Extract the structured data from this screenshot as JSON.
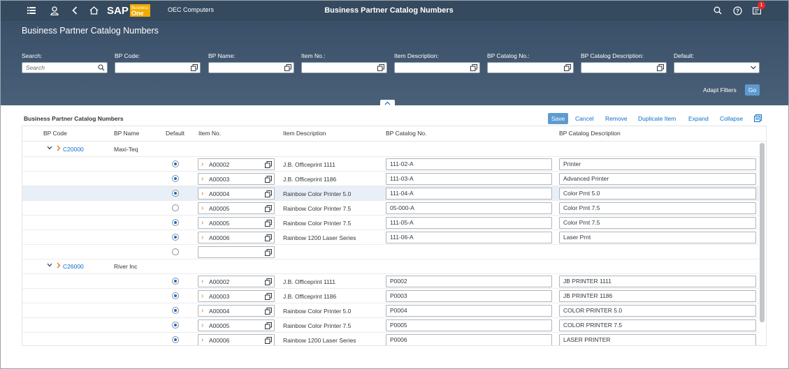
{
  "shell": {
    "company": "OEC Computers",
    "app_title": "Business Partner Catalog Numbers",
    "logo_text": "SAP Business One",
    "notifications": "1"
  },
  "header": {
    "page_title": "Business Partner Catalog Numbers",
    "filters": [
      {
        "label": "Search:",
        "placeholder": "Search"
      },
      {
        "label": "BP Code:",
        "placeholder": ""
      },
      {
        "label": "BP Name:",
        "placeholder": ""
      },
      {
        "label": "Item No.:",
        "placeholder": ""
      },
      {
        "label": "Item Description:",
        "placeholder": ""
      },
      {
        "label": "BP Catalog No.:",
        "placeholder": ""
      },
      {
        "label": "BP Catalog Description:",
        "placeholder": ""
      },
      {
        "label": "Default:",
        "placeholder": ""
      }
    ],
    "adapt_filters": "Adapt Filters",
    "go": "Go"
  },
  "section": {
    "title": "Business Partner Catalog Numbers",
    "actions": {
      "save": "Save",
      "cancel": "Cancel",
      "remove": "Remove",
      "duplicate": "Duplicate Item",
      "expand": "Expand",
      "collapse": "Collapse"
    }
  },
  "table": {
    "columns": [
      "BP Code",
      "BP Name",
      "Default",
      "Item No.",
      "Item Description",
      "BP Catalog No.",
      "BP Catalog Description"
    ],
    "groups": [
      {
        "bp_code": "C20000",
        "bp_name": "Maxi-Teq",
        "rows": [
          {
            "default": true,
            "item_no": "A00002",
            "item_desc": "J.B. Officeprint 1111",
            "cat_no": "111-02-A",
            "cat_desc": "Printer"
          },
          {
            "default": true,
            "item_no": "A00003",
            "item_desc": "J.B. Officeprint 1186",
            "cat_no": "111-03-A",
            "cat_desc": "Advanced Printer"
          },
          {
            "default": true,
            "item_no": "A00004",
            "item_desc": "Rainbow Color Printer 5.0",
            "cat_no": "111-04-A",
            "cat_desc": "Color Prnt 5.0"
          },
          {
            "default": false,
            "item_no": "A00005",
            "item_desc": "Rainbow Color Printer 7.5",
            "cat_no": "05-000-A",
            "cat_desc": "Color Prnt 7.5"
          },
          {
            "default": true,
            "item_no": "A00005",
            "item_desc": "Rainbow Color Printer 7.5",
            "cat_no": "111-05-A",
            "cat_desc": "Color Prnt 7.5"
          },
          {
            "default": true,
            "item_no": "A00006",
            "item_desc": "Rainbow 1200 Laser Series",
            "cat_no": "111-06-A",
            "cat_desc": "Laser Prnt"
          },
          {
            "default": false,
            "item_no": "",
            "item_desc": "",
            "cat_no": "",
            "cat_desc": "",
            "empty": true
          }
        ]
      },
      {
        "bp_code": "C26000",
        "bp_name": "River Inc",
        "rows": [
          {
            "default": true,
            "item_no": "A00002",
            "item_desc": "J.B. Officeprint 1111",
            "cat_no": "P0002",
            "cat_desc": "JB PRINTER 1111"
          },
          {
            "default": true,
            "item_no": "A00003",
            "item_desc": "J.B. Officeprint 1186",
            "cat_no": "P0003",
            "cat_desc": "JB PRINTER 1186"
          },
          {
            "default": true,
            "item_no": "A00004",
            "item_desc": "Rainbow Color Printer 5.0",
            "cat_no": "P0004",
            "cat_desc": "COLOR PRINTER 5.0"
          },
          {
            "default": true,
            "item_no": "A00005",
            "item_desc": "Rainbow Color Printer 7.5",
            "cat_no": "P0005",
            "cat_desc": "COLOR PRINTER 7.5"
          },
          {
            "default": true,
            "item_no": "A00006",
            "item_desc": "Rainbow 1200 Laser Series",
            "cat_no": "P0006",
            "cat_desc": "LASER PRINTER"
          }
        ]
      }
    ],
    "selected_row": "C20000-2"
  },
  "colors": {
    "shell": "#354a5f",
    "accent": "#0a6ed1",
    "button": "#5d9bd1",
    "chevron": "#e9730c"
  }
}
